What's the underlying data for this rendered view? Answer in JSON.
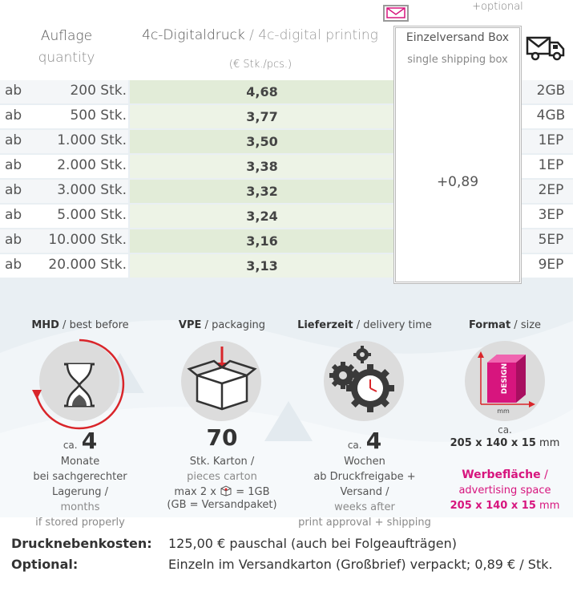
{
  "header": {
    "optional_label": "+optional",
    "quantity_de": "Auflage",
    "quantity_en": "quantity",
    "print_de": "4c-Digitaldruck",
    "print_sep": " / ",
    "print_en": "4c-digital printing",
    "unit": "(€ Stk./pcs.)",
    "box_de": "Einzelversand Box",
    "box_en": "single shipping box",
    "box_price": "+0,89"
  },
  "rows": [
    {
      "prefix": "ab",
      "qty": "200 Stk.",
      "price": "4,68",
      "ship": "2GB"
    },
    {
      "prefix": "ab",
      "qty": "500 Stk.",
      "price": "3,77",
      "ship": "4GB"
    },
    {
      "prefix": "ab",
      "qty": "1.000 Stk.",
      "price": "3,50",
      "ship": "1EP"
    },
    {
      "prefix": "ab",
      "qty": "2.000 Stk.",
      "price": "3,38",
      "ship": "1EP"
    },
    {
      "prefix": "ab",
      "qty": "3.000 Stk.",
      "price": "3,32",
      "ship": "2EP"
    },
    {
      "prefix": "ab",
      "qty": "5.000 Stk.",
      "price": "3,24",
      "ship": "3EP"
    },
    {
      "prefix": "ab",
      "qty": "10.000 Stk.",
      "price": "3,16",
      "ship": "5EP"
    },
    {
      "prefix": "ab",
      "qty": "20.000 Stk.",
      "price": "3,13",
      "ship": "9EP"
    }
  ],
  "features": {
    "mhd": {
      "title_de": "MHD",
      "title_en": "best before",
      "ca": "ca.",
      "num": "4",
      "l1": "Monate",
      "l2": "bei sachgerechter Lagerung /",
      "l3": "months",
      "l4": "if stored properly"
    },
    "vpe": {
      "title_de": "VPE",
      "title_en": "packaging",
      "num": "70",
      "l1": "Stk. Karton /",
      "l2": "pieces carton",
      "l3a": "max 2 x",
      "l3b": "= 1GB",
      "l4": "(GB = Versandpaket)"
    },
    "lieferzeit": {
      "title_de": "Lieferzeit",
      "title_en": "delivery time",
      "ca": "ca.",
      "num": "4",
      "l1": "Wochen",
      "l2": "ab Druckfreigabe + Versand /",
      "l3": "weeks after",
      "l4": "print approval + shipping"
    },
    "format": {
      "title_de": "Format",
      "title_en": "size",
      "mm_tag": "mm",
      "design_tag": "DESIGN",
      "ca": "ca.",
      "size_bold": "205 x 140 x 15",
      "size_unit": "mm",
      "ad_de": "Werbefläche",
      "ad_sep": " /",
      "ad_en": "advertising space",
      "ad_size_bold": "205 x 140 x 15",
      "ad_size_unit": "mm"
    }
  },
  "footer": {
    "l1_label": "Drucknebenkosten:",
    "l1_text": "125,00 € pauschal (auch bei Folgeaufträgen)",
    "l2_label": "Optional:",
    "l2_text": "Einzeln im Versandkarton (Großbrief) verpackt; 0,89 € / Stk."
  },
  "colors": {
    "accent": "#d7157e",
    "green_dark": "#e2ecd8",
    "green_light": "#edf3e6",
    "red": "#d9252a"
  }
}
